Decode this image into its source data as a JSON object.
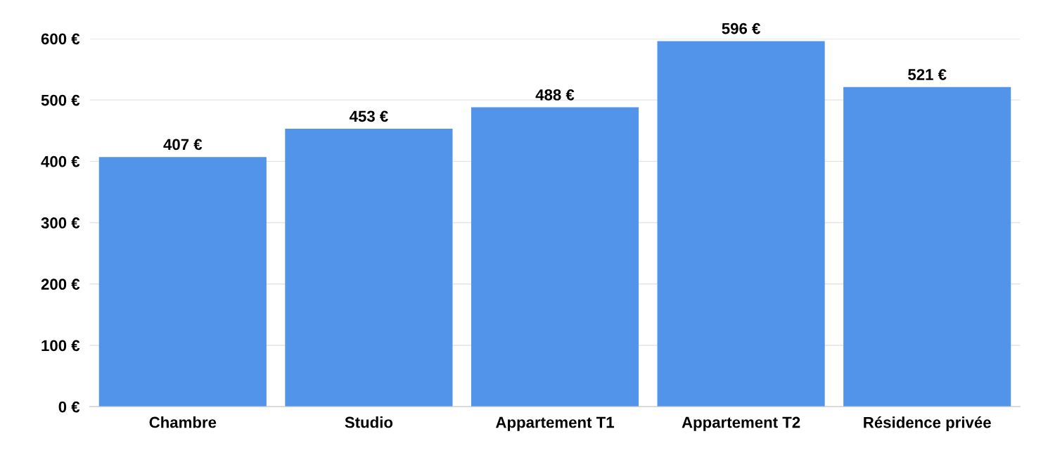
{
  "chart_data": {
    "type": "bar",
    "categories": [
      "Chambre",
      "Studio",
      "Appartement T1",
      "Appartement T2",
      "Résidence privée"
    ],
    "values": [
      407,
      453,
      488,
      596,
      521
    ],
    "value_labels": [
      "407 €",
      "453 €",
      "488 €",
      "596 €",
      "521 €"
    ],
    "color": "#5294ea",
    "ylim": [
      0,
      600
    ],
    "yticks": [
      {
        "value": 0,
        "label": "0 €"
      },
      {
        "value": 100,
        "label": "100 €"
      },
      {
        "value": 200,
        "label": "200 €"
      },
      {
        "value": 300,
        "label": "300 €"
      },
      {
        "value": 400,
        "label": "400 €"
      },
      {
        "value": 500,
        "label": "500 €"
      },
      {
        "value": 600,
        "label": "600 €"
      }
    ],
    "grid": "y",
    "legend": false
  }
}
